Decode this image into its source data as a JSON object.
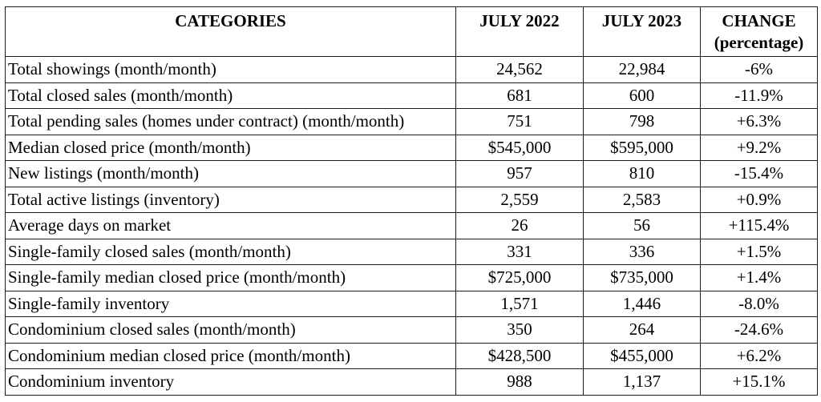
{
  "table": {
    "headers": {
      "categories": "CATEGORIES",
      "jul2022": "JULY 2022",
      "jul2023": "JULY 2023",
      "change_line1": "CHANGE",
      "change_line2": "(percentage)"
    },
    "rows": [
      {
        "category": "Total showings (month/month)",
        "jul2022": "24,562",
        "jul2023": "22,984",
        "change": "-6%"
      },
      {
        "category": "Total closed sales (month/month)",
        "jul2022": "681",
        "jul2023": "600",
        "change": "-11.9%"
      },
      {
        "category": "Total pending sales (homes under contract) (month/month)",
        "jul2022": "751",
        "jul2023": "798",
        "change": "+6.3%"
      },
      {
        "category": "Median closed price (month/month)",
        "jul2022": "$545,000",
        "jul2023": "$595,000",
        "change": "+9.2%"
      },
      {
        "category": "New listings (month/month)",
        "jul2022": "957",
        "jul2023": "810",
        "change": "-15.4%"
      },
      {
        "category": "Total active listings (inventory)",
        "jul2022": "2,559",
        "jul2023": "2,583",
        "change": "+0.9%"
      },
      {
        "category": "Average days on market",
        "jul2022": "26",
        "jul2023": "56",
        "change": "+115.4%"
      },
      {
        "category": "Single-family closed sales (month/month)",
        "jul2022": "331",
        "jul2023": "336",
        "change": "+1.5%"
      },
      {
        "category": "Single-family median closed price (month/month)",
        "jul2022": "$725,000",
        "jul2023": "$735,000",
        "change": "+1.4%"
      },
      {
        "category": "Single-family inventory",
        "jul2022": "1,571",
        "jul2023": "1,446",
        "change": "-8.0%"
      },
      {
        "category": "Condominium closed sales (month/month)",
        "jul2022": "350",
        "jul2023": "264",
        "change": "-24.6%"
      },
      {
        "category": "Condominium median closed price (month/month)",
        "jul2022": "$428,500",
        "jul2023": "$455,000",
        "change": "+6.2%"
      },
      {
        "category": "Condominium inventory",
        "jul2022": "988",
        "jul2023": "1,137",
        "change": "+15.1%"
      }
    ]
  }
}
